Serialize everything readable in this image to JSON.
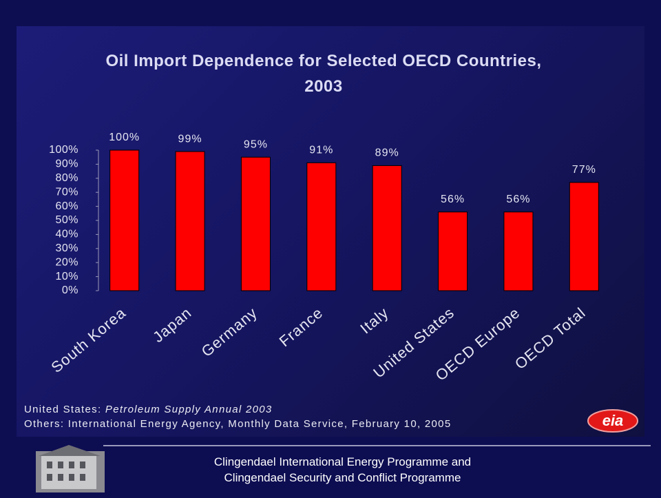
{
  "chart_data": {
    "type": "bar",
    "title": "Oil Import Dependence for Selected OECD Countries, 2003",
    "categories": [
      "South Korea",
      "Japan",
      "Germany",
      "France",
      "Italy",
      "United States",
      "OECD Europe",
      "OECD Total"
    ],
    "values": [
      100,
      99,
      95,
      91,
      89,
      56,
      56,
      77
    ],
    "value_labels": [
      "100%",
      "99%",
      "95%",
      "91%",
      "89%",
      "56%",
      "56%",
      "77%"
    ],
    "color": "#ff0000",
    "ylim": [
      0,
      100
    ],
    "yticks": [
      {
        "value": 0,
        "label": "0%"
      },
      {
        "value": 10,
        "label": "10%"
      },
      {
        "value": 20,
        "label": "20%"
      },
      {
        "value": 30,
        "label": "30%"
      },
      {
        "value": 40,
        "label": "40%"
      },
      {
        "value": 50,
        "label": "50%"
      },
      {
        "value": 60,
        "label": "60%"
      },
      {
        "value": 70,
        "label": "70%"
      },
      {
        "value": 80,
        "label": "80%"
      },
      {
        "value": 90,
        "label": "90%"
      },
      {
        "value": 100,
        "label": "100%"
      }
    ],
    "grid": false,
    "source": [
      [
        "United States: ",
        "Petroleum Supply Annual 2003"
      ],
      [
        "Others: International Energy Agency, Monthly Data Service, February 10, 2005"
      ]
    ]
  },
  "logo": "eia",
  "footer": [
    "Clingendael International Energy Programme and",
    "Clingendael Security and Conflict Programme"
  ]
}
